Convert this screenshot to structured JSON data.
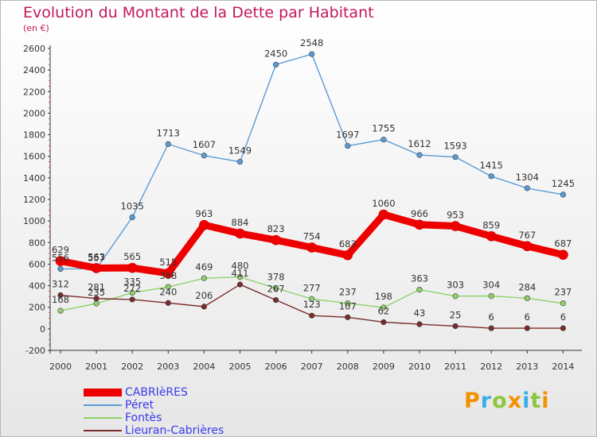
{
  "chart_data": {
    "type": "line",
    "title": "Evolution du Montant de la Dette par Habitant",
    "subtitle": "(en €)",
    "x": [
      "2000",
      "2001",
      "2002",
      "2003",
      "2004",
      "2005",
      "2006",
      "2007",
      "2008",
      "2009",
      "2010",
      "2011",
      "2012",
      "2013",
      "2014"
    ],
    "ylim": [
      -200,
      2600
    ],
    "yticks": [
      -200,
      0,
      200,
      400,
      600,
      800,
      1000,
      1200,
      1400,
      1600,
      1800,
      2000,
      2200,
      2400,
      2600
    ],
    "grid": false,
    "legend_position": "bottom-left",
    "series": [
      {
        "name": "CABRIèRES",
        "color": "#ee0000",
        "highlight": true,
        "values": [
          629,
          563,
          565,
          515,
          963,
          884,
          823,
          754,
          683,
          1060,
          966,
          953,
          859,
          767,
          687
        ]
      },
      {
        "name": "Péret",
        "color": "#5b9bd5",
        "values": [
          556,
          557,
          1035,
          1713,
          1607,
          1549,
          2450,
          2548,
          1697,
          1755,
          1612,
          1593,
          1415,
          1304,
          1245
        ]
      },
      {
        "name": "Fontès",
        "color": "#8fd16a",
        "values": [
          168,
          235,
          335,
          388,
          469,
          480,
          378,
          277,
          237,
          198,
          363,
          303,
          304,
          284,
          237
        ]
      },
      {
        "name": "Lieuran-Cabrières",
        "color": "#7b2c2c",
        "values": [
          312,
          281,
          272,
          240,
          206,
          411,
          267,
          123,
          107,
          62,
          43,
          25,
          6,
          6,
          6
        ]
      }
    ]
  },
  "brand": {
    "text": "Proxiti",
    "colors": [
      "#f39200",
      "#3aaee5",
      "#8dc63f"
    ]
  }
}
